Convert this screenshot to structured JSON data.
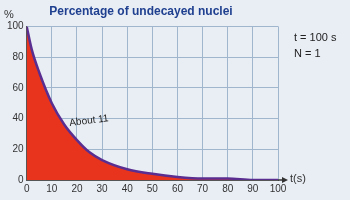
{
  "chart_data": {
    "type": "area",
    "title": "Percentage of undecayed nuclei",
    "y_label": "%",
    "x_label": "t(s)",
    "annotations": [
      "About 11",
      "t = 100 s",
      "N = 1"
    ],
    "x": [
      0,
      2,
      5,
      10,
      15,
      20,
      25,
      30,
      40,
      50,
      60,
      70,
      80,
      90,
      100
    ],
    "values": [
      100,
      85,
      70,
      50,
      36,
      26,
      18,
      13,
      7,
      4,
      2,
      1,
      1,
      0,
      0
    ],
    "color": "#e8341c",
    "xlim": [
      0,
      100
    ],
    "xticks": [
      0,
      10,
      20,
      30,
      40,
      50,
      60,
      70,
      80,
      90,
      100
    ],
    "ylim": [
      0,
      100
    ],
    "yticks": [
      0,
      20,
      40,
      60,
      80,
      100
    ],
    "grid": true
  }
}
